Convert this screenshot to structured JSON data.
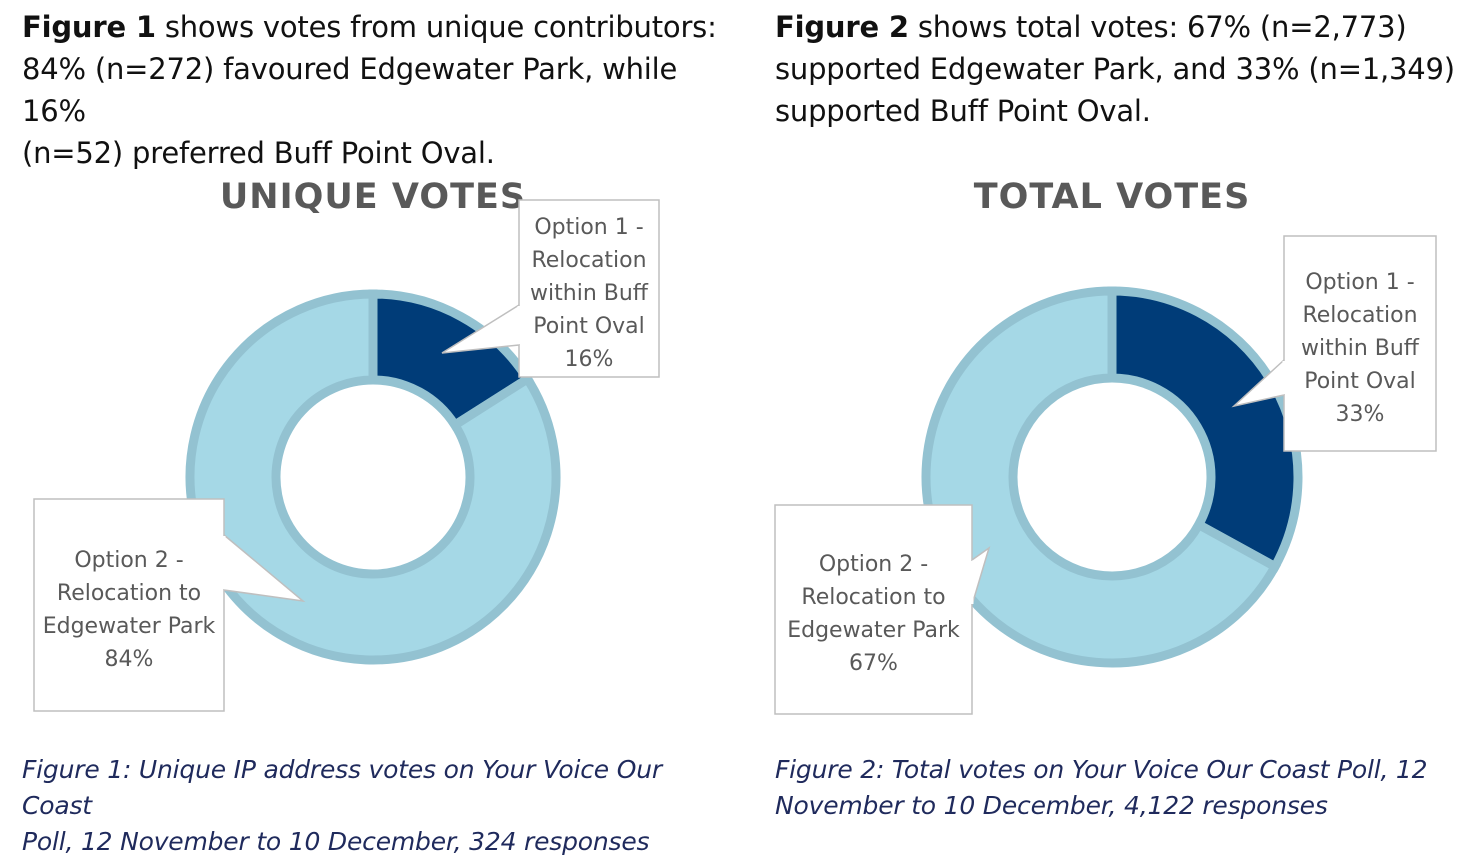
{
  "intro_1": {
    "bold": "Figure 1",
    "line1_rest": " shows votes from unique contributors:",
    "line2": "84% (n=272) favoured Edgewater Park, while 16%",
    "line3": "(n=52) preferred Buff Point Oval."
  },
  "intro_2": {
    "bold": "Figure 2",
    "line1_rest": " shows total votes: 67% (n=2,773)",
    "line2": "supported Edgewater Park, and 33% (n=1,349)",
    "line3": "supported Buff Point Oval."
  },
  "caption_1": {
    "line1": "Figure 1: Unique IP address votes on Your Voice Our Coast",
    "line2": "Poll, 12 November to 10 December, 324 responses"
  },
  "caption_2": {
    "line1": "Figure 2: Total votes on Your Voice Our Coast Poll, 12",
    "line2": "November to 10 December, 4,122 responses"
  },
  "colors": {
    "option1": "#003c78",
    "option2": "#a5d8e6",
    "ring_border": "#93c2d1",
    "title": "#595959",
    "label_text": "#595959",
    "caption": "#1f2a5c"
  },
  "chart_data": [
    {
      "type": "pie",
      "title": "UNIQUE VOTES",
      "categories": [
        "Option 1 - Relocation within Buff Point Oval",
        "Option 2 - Relocation to Edgewater Park"
      ],
      "values": [
        16,
        84
      ],
      "labels": [
        {
          "lines": [
            "Option 1 -",
            "Relocation",
            "within Buff",
            "Point Oval",
            "16%"
          ]
        },
        {
          "lines": [
            "Option 2 -",
            "Relocation to",
            "Edgewater Park",
            "84%"
          ]
        }
      ],
      "legend": "none"
    },
    {
      "type": "pie",
      "title": "TOTAL VOTES",
      "categories": [
        "Option 1 - Relocation within Buff Point Oval",
        "Option 2 - Relocation to Edgewater Park"
      ],
      "values": [
        33,
        67
      ],
      "labels": [
        {
          "lines": [
            "Option 1 -",
            "Relocation",
            "within Buff",
            "Point Oval",
            "33%"
          ]
        },
        {
          "lines": [
            "Option 2 -",
            "Relocation to",
            "Edgewater Park",
            "67%"
          ]
        }
      ],
      "legend": "none"
    }
  ]
}
